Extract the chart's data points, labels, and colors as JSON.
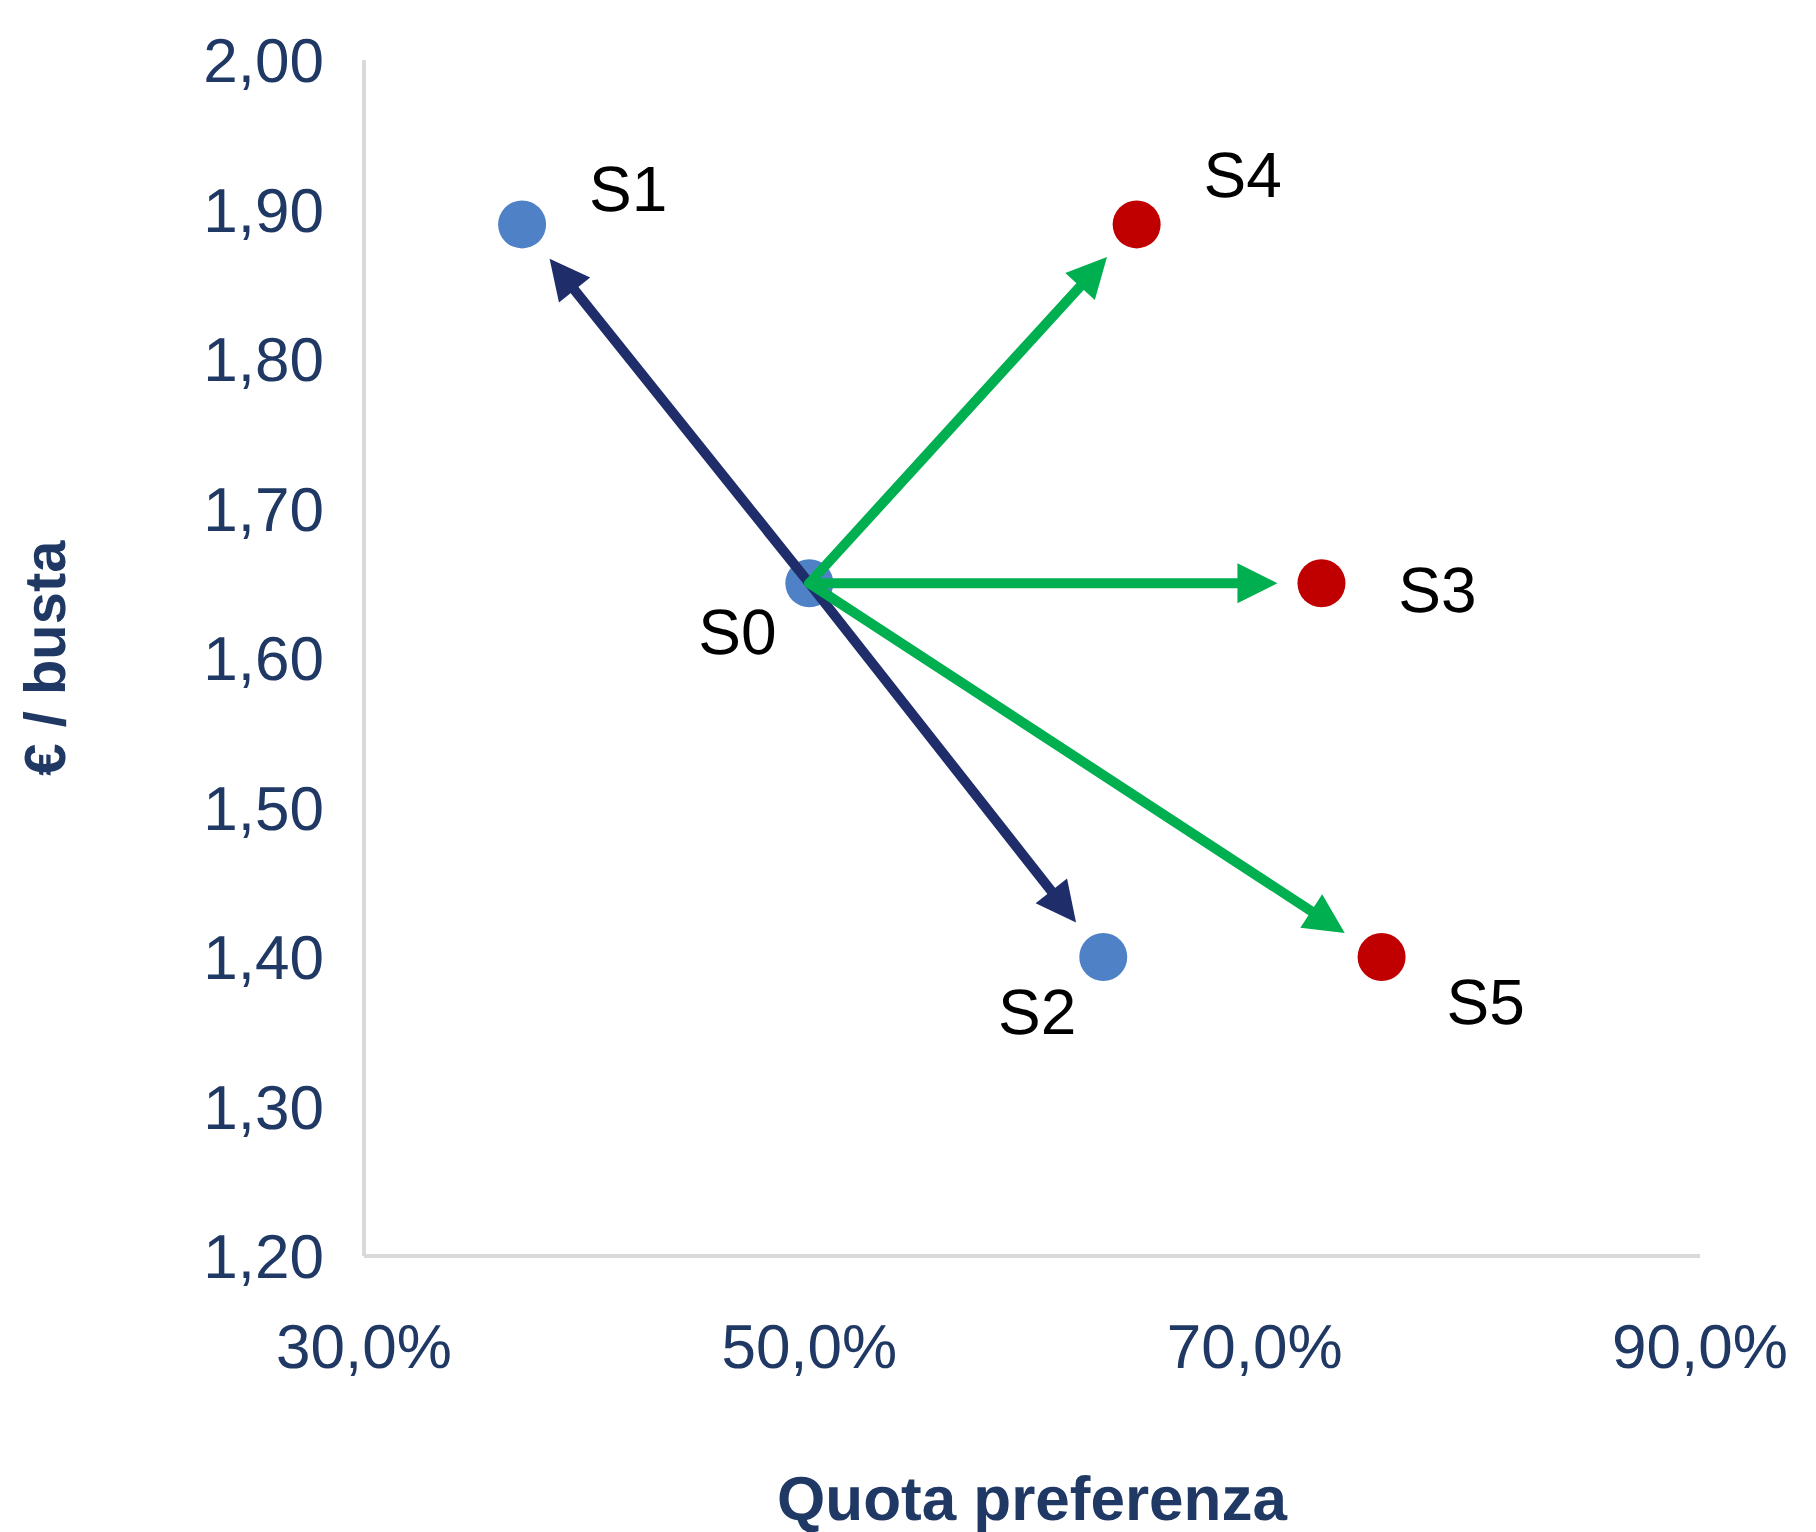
{
  "chart_data": {
    "type": "scatter",
    "xlabel": "Quota preferenza",
    "ylabel": "€ / busta",
    "xlim": [
      30,
      90
    ],
    "xticks": [
      {
        "value": 30,
        "label": "30,0%"
      },
      {
        "value": 50,
        "label": "50,0%"
      },
      {
        "value": 70,
        "label": "70,0%"
      },
      {
        "value": 90,
        "label": "90,0%"
      }
    ],
    "ylim": [
      1.2,
      2.0
    ],
    "yticks": [
      {
        "value": 1.2,
        "label": "1,20"
      },
      {
        "value": 1.3,
        "label": "1,30"
      },
      {
        "value": 1.4,
        "label": "1,40"
      },
      {
        "value": 1.5,
        "label": "1,50"
      },
      {
        "value": 1.6,
        "label": "1,60"
      },
      {
        "value": 1.7,
        "label": "1,70"
      },
      {
        "value": 1.8,
        "label": "1,80"
      },
      {
        "value": 1.9,
        "label": "1,90"
      },
      {
        "value": 2.0,
        "label": "2,00"
      }
    ],
    "series": [
      {
        "color": "#4f81c7",
        "x": [
          50,
          37.1,
          63.2
        ],
        "values": [
          1.65,
          1.89,
          1.4
        ]
      },
      {
        "color": "#c00000",
        "x": [
          73,
          64.7,
          75.7
        ],
        "values": [
          1.65,
          1.89,
          1.4
        ]
      }
    ],
    "annotations": [
      {
        "text": "S0",
        "x": 50,
        "y": 1.65
      },
      {
        "text": "S1",
        "x": 37.1,
        "y": 1.89
      },
      {
        "text": "S2",
        "x": 63.2,
        "y": 1.4
      },
      {
        "text": "S3",
        "x": 73,
        "y": 1.65
      },
      {
        "text": "S4",
        "x": 64.7,
        "y": 1.89
      },
      {
        "text": "S5",
        "x": 75.7,
        "y": 1.4
      }
    ],
    "marker": "circle",
    "grid": false,
    "legend": false
  }
}
